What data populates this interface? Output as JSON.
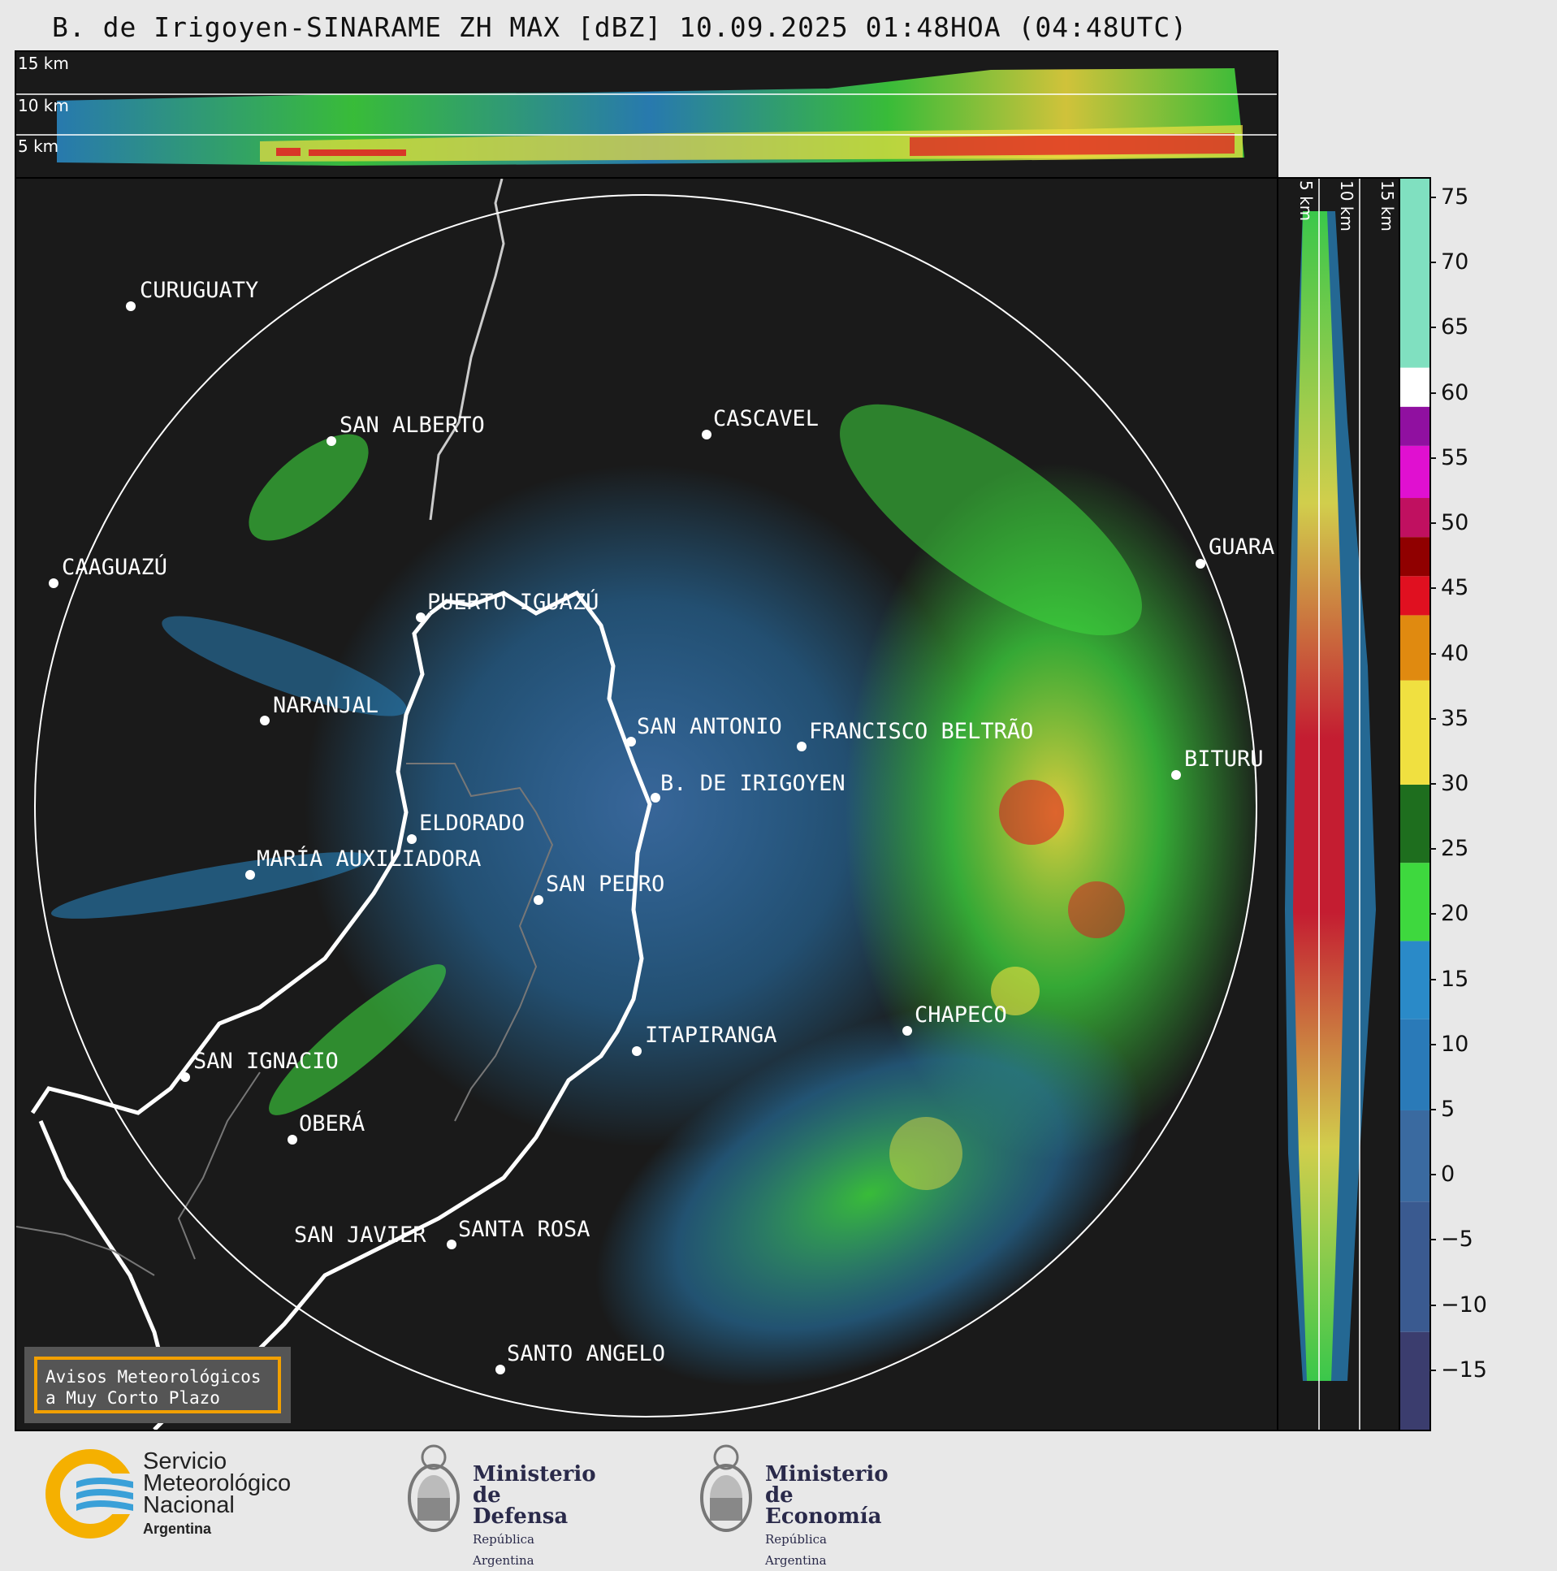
{
  "title": "B. de Irigoyen-SINARAME ZH MAX [dBZ] 10.09.2025 01:48HOA (04:48UTC)",
  "top_panel": {
    "altitude_labels": [
      "15 km",
      "10 km",
      "5 km"
    ]
  },
  "side_panel": {
    "altitude_labels": [
      "5 km",
      "10 km",
      "15 km"
    ]
  },
  "colorbar": {
    "unit": "dBZ",
    "ticks": [
      "75",
      "70",
      "65",
      "60",
      "55",
      "50",
      "45",
      "40",
      "35",
      "30",
      "25",
      "20",
      "15",
      "10",
      "5",
      "0",
      "−5",
      "−10",
      "−15"
    ],
    "tick_values": [
      75,
      70,
      65,
      60,
      55,
      50,
      45,
      40,
      35,
      30,
      25,
      20,
      15,
      10,
      5,
      0,
      -5,
      -10,
      -15
    ],
    "range": [
      -19.5,
      76.5
    ],
    "colors": {
      "very_low": "#3b3d6e",
      "low": "#3a6aa0",
      "mid_blue": "#2a8ac8",
      "green": "#3ed83e",
      "dark_green": "#1e6e1e",
      "yellow": "#f0e040",
      "orange": "#e08a10",
      "red": "#e01020",
      "dark_red": "#900000",
      "magenta": "#e010d0",
      "purple": "#9010a0",
      "white": "#ffffff",
      "teal": "#80e0c0"
    }
  },
  "cities": [
    {
      "name": "CURUGUATY"
    },
    {
      "name": "SAN ALBERTO"
    },
    {
      "name": "CASCAVEL"
    },
    {
      "name": "CAAGUAZÚ"
    },
    {
      "name": "GUARA"
    },
    {
      "name": "PUERTO IGUAZÚ"
    },
    {
      "name": "NARANJAL"
    },
    {
      "name": "SAN ANTONIO"
    },
    {
      "name": "FRANCISCO BELTRÃO"
    },
    {
      "name": "BITURU"
    },
    {
      "name": "B. DE IRIGOYEN"
    },
    {
      "name": "ELDORADO"
    },
    {
      "name": "MARÍA AUXILIADORA"
    },
    {
      "name": "SAN PEDRO"
    },
    {
      "name": "CHAPECO"
    },
    {
      "name": "ITAPIRANGA"
    },
    {
      "name": "SAN IGNACIO"
    },
    {
      "name": "OBERÁ"
    },
    {
      "name": "SAN JAVIER"
    },
    {
      "name": "SANTA ROSA"
    },
    {
      "name": "SANTO ANGELO"
    }
  ],
  "warning": {
    "line1": "Avisos Meteorológicos",
    "line2": "a Muy Corto Plazo"
  },
  "footer": {
    "smn": {
      "line1": "Servicio",
      "line2": "Meteorológico",
      "line3": "Nacional",
      "line4": "Argentina"
    },
    "defensa": {
      "line1": "Ministerio",
      "line2": "de Defensa",
      "line3": "República Argentina"
    },
    "economia": {
      "line1": "Ministerio",
      "line2": "de Economía",
      "line3": "República Argentina"
    }
  }
}
